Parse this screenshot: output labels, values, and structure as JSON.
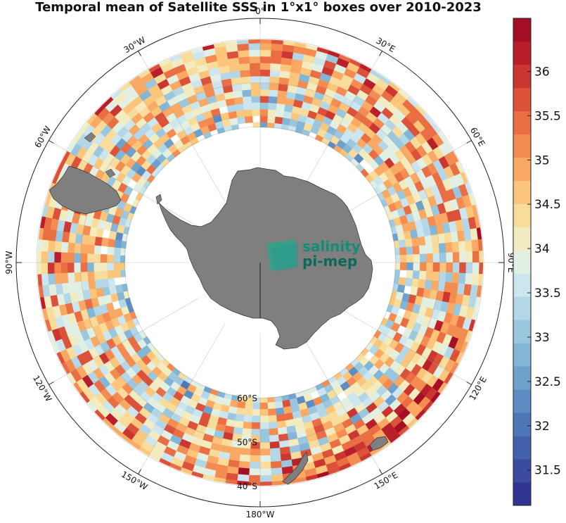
{
  "title": "Temporal mean of Satellite SSS in 1°x1° boxes over 2010-2023",
  "projection": "south-polar-stereographic",
  "longitude_labels": [
    {
      "text": "0°",
      "lon": 0
    },
    {
      "text": "30°E",
      "lon": 30
    },
    {
      "text": "60°E",
      "lon": 60
    },
    {
      "text": "90°E",
      "lon": 90
    },
    {
      "text": "120°E",
      "lon": 120
    },
    {
      "text": "150°E",
      "lon": 150
    },
    {
      "text": "180°W",
      "lon": 180
    },
    {
      "text": "150°W",
      "lon": -150
    },
    {
      "text": "120°W",
      "lon": -120
    },
    {
      "text": "90°W",
      "lon": -90
    },
    {
      "text": "60°W",
      "lon": -60
    },
    {
      "text": "30°W",
      "lon": -30
    }
  ],
  "latitude_labels": [
    {
      "text": "60°S",
      "lat": -60
    },
    {
      "text": "50°S",
      "lat": -50
    },
    {
      "text": "40°S",
      "lat": -40
    }
  ],
  "data_lat_range": [
    -65,
    -35
  ],
  "colorbar": {
    "min": 31.1,
    "max": 36.6,
    "ticks": [
      31.5,
      32,
      32.5,
      33,
      33.5,
      34,
      34.5,
      35,
      35.5,
      36
    ],
    "tick_labels": [
      "31.5",
      "32",
      "32.5",
      "33",
      "33.5",
      "34",
      "34.5",
      "35",
      "35.5",
      "36"
    ],
    "colors": [
      "#313695",
      "#3b4ba0",
      "#4461ab",
      "#4f76b6",
      "#5c8cc1",
      "#6ea1cb",
      "#83b5d6",
      "#9bc7de",
      "#b4d7e7",
      "#cce5ee",
      "#e2f0e4",
      "#f3ecc0",
      "#f9dc9a",
      "#fbc67b",
      "#f9a963",
      "#f48c51",
      "#ea6e43",
      "#dc5139",
      "#cb3631",
      "#b81f2a",
      "#a50f26"
    ],
    "colormap": "RdYlBu_r"
  },
  "logo": {
    "line1": "salinity",
    "line2": "pi-mep"
  },
  "colors": {
    "land": "#7f7f7f",
    "grid": "#9a9a9a",
    "ocean_no_data": "#ffffff"
  }
}
